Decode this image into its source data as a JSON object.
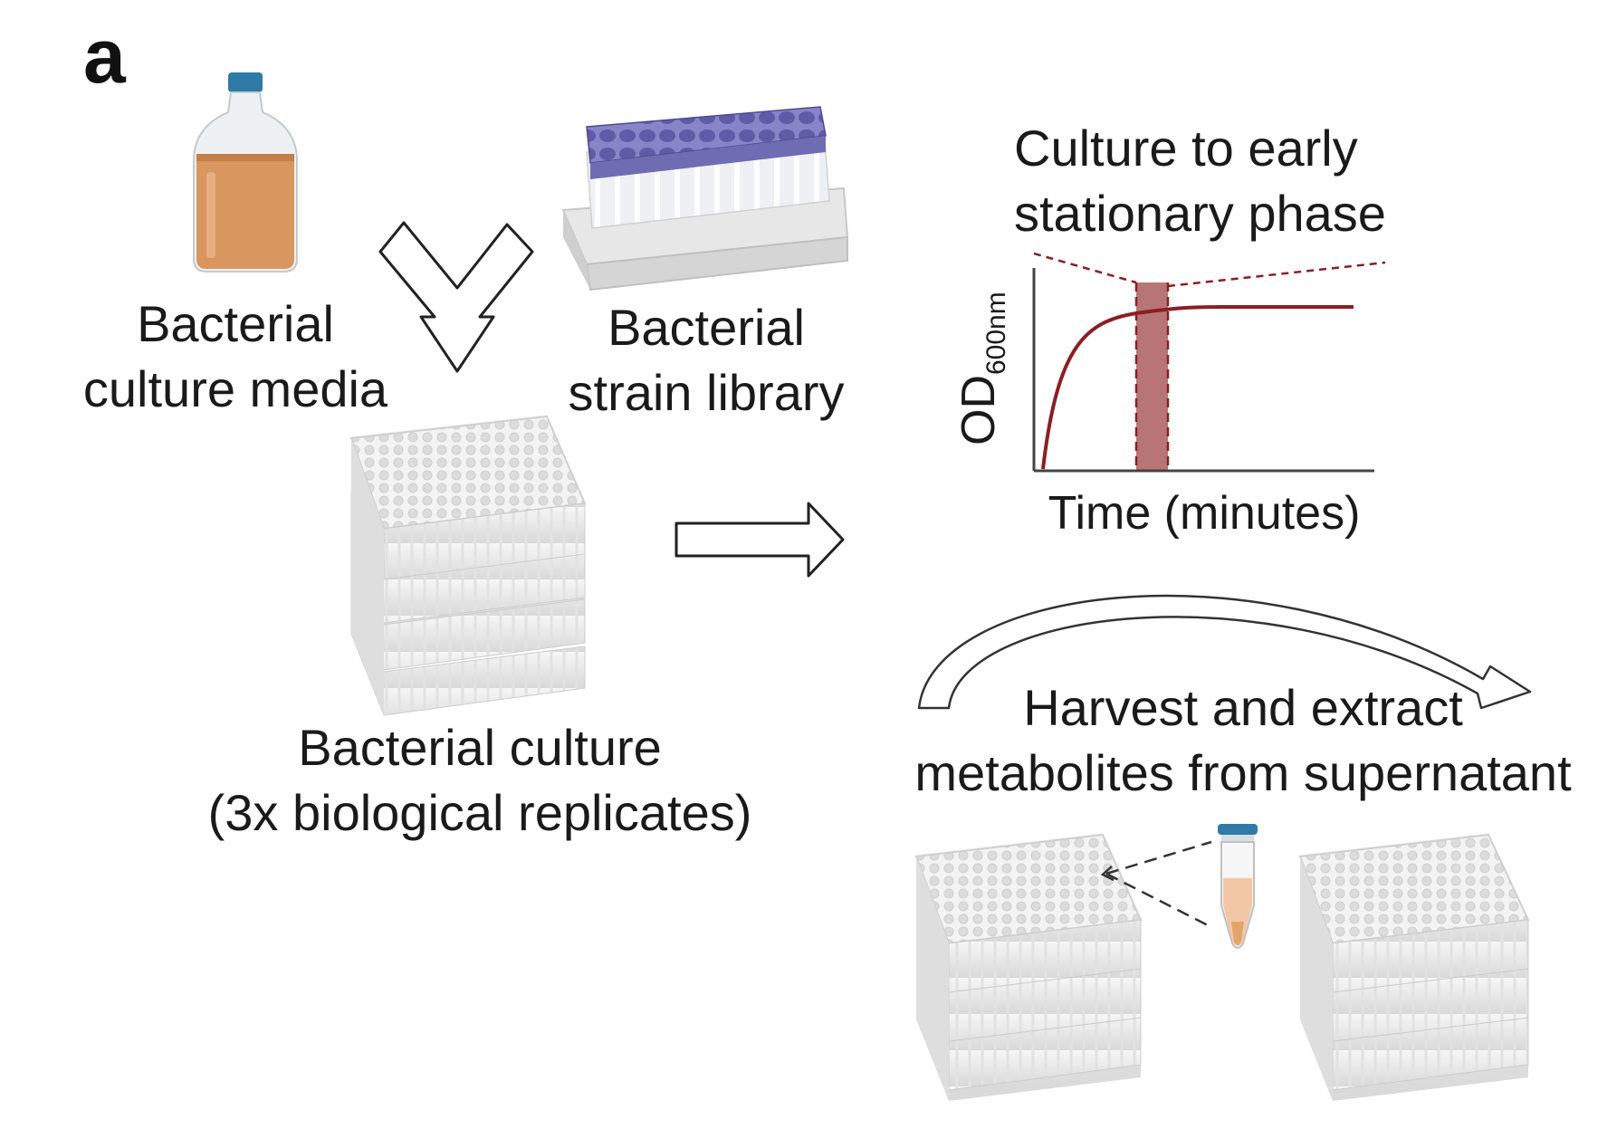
{
  "panel_letter": "a",
  "labels": {
    "media": [
      "Bacterial",
      "culture media"
    ],
    "library": [
      "Bacterial",
      "strain library"
    ],
    "culture": [
      "Bacterial culture",
      "(3x biological replicates)"
    ],
    "stationary": [
      "Culture to early",
      "stationary phase"
    ],
    "harvest": [
      "Harvest and extract",
      "metabolites from supernatant"
    ]
  },
  "growth_plot": {
    "ylabel_main": "OD",
    "ylabel_sub": "600nm",
    "xlabel": "Time (minutes)"
  },
  "colors": {
    "media_fill": "#d9965e",
    "cap": "#2f7aa6",
    "library_caps": "#6f6cb3",
    "curve": "#8a1f24",
    "highlight": "#b87576",
    "tube_fill": "#f2c7a6",
    "tube_tip": "#e3a467"
  }
}
